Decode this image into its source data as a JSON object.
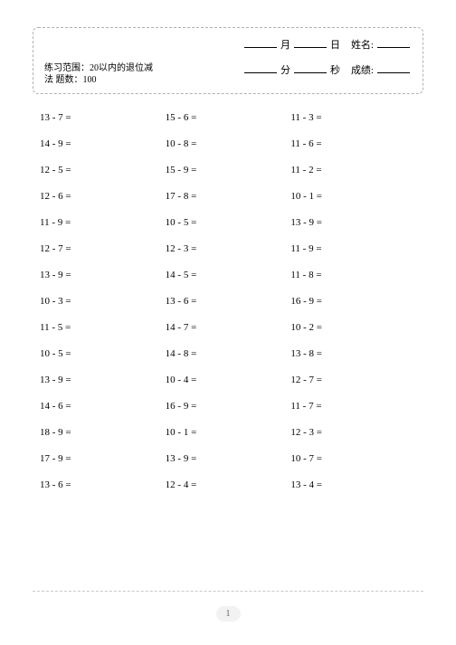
{
  "header": {
    "scope_line1": "练习范围：20以内的退位减",
    "scope_line2": "法  题数：100",
    "month_label": "月",
    "day_label": "日",
    "name_label": "姓名:",
    "minute_label": "分",
    "second_label": "秒",
    "score_label": "成绩:"
  },
  "problems": [
    {
      "c1": "13 - 7 =",
      "c2": "15 - 6 =",
      "c3": "11 - 3 ="
    },
    {
      "c1": "14 - 9 =",
      "c2": "10 - 8 =",
      "c3": "11 - 6 ="
    },
    {
      "c1": "12 - 5 =",
      "c2": "15 - 9 =",
      "c3": "11 - 2 ="
    },
    {
      "c1": "12 - 6 =",
      "c2": "17 - 8 =",
      "c3": "10 - 1 ="
    },
    {
      "c1": "11 - 9 =",
      "c2": "10 - 5 =",
      "c3": "13 - 9 ="
    },
    {
      "c1": "12 - 7 =",
      "c2": "12 - 3 =",
      "c3": "11 - 9 ="
    },
    {
      "c1": "13 - 9 =",
      "c2": "14 - 5 =",
      "c3": "11 - 8 ="
    },
    {
      "c1": "10 - 3 =",
      "c2": "13 - 6 =",
      "c3": "16 - 9 ="
    },
    {
      "c1": "11 - 5 =",
      "c2": "14 - 7 =",
      "c3": "10 - 2 ="
    },
    {
      "c1": "10 - 5 =",
      "c2": "14 - 8 =",
      "c3": "13 - 8 ="
    },
    {
      "c1": "13 - 9 =",
      "c2": "10 - 4 =",
      "c3": "12 - 7 ="
    },
    {
      "c1": "14 - 6 =",
      "c2": "16 - 9 =",
      "c3": "11 - 7 ="
    },
    {
      "c1": "18 - 9 =",
      "c2": "10 - 1 =",
      "c3": "12 - 3 ="
    },
    {
      "c1": "17 - 9 =",
      "c2": "13 - 9 =",
      "c3": "10 - 7 ="
    },
    {
      "c1": "13 - 6 =",
      "c2": "12 - 4 =",
      "c3": "13 - 4 ="
    }
  ],
  "page_number": "1",
  "colors": {
    "text": "#000000",
    "background": "#ffffff",
    "border_dash": "#b0b0b0",
    "footer_dash": "#c8c8c8",
    "pagenum_bg": "#f2f2f2",
    "pagenum_text": "#666666"
  }
}
